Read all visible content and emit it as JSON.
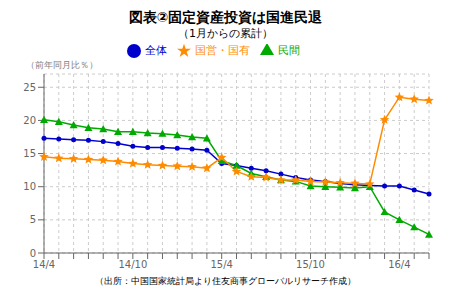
{
  "chart_data": {
    "type": "line",
    "title": "図表②固定資産投資は国進民退",
    "subtitle": "（1月からの累計）",
    "ylabel": "（前年同月比％）",
    "note": "（出所：中国国家統計局より住友商事グローバルリサーチ作成）",
    "categories": [
      "14/4",
      null,
      null,
      null,
      null,
      null,
      "14/10",
      null,
      null,
      null,
      null,
      null,
      "15/4",
      null,
      null,
      null,
      null,
      null,
      "15/10",
      null,
      null,
      null,
      null,
      null,
      "16/4",
      null,
      null
    ],
    "ylim": [
      0,
      27
    ],
    "yticks": [
      0,
      5,
      10,
      15,
      20,
      25
    ],
    "grid": true,
    "legend": "top",
    "series": [
      {
        "name": "全体",
        "color": "#0000CD",
        "marker": "circle",
        "values": [
          17.3,
          17.2,
          17.1,
          17.0,
          16.8,
          16.5,
          16.1,
          15.9,
          15.9,
          15.8,
          15.7,
          15.5,
          13.5,
          13.2,
          12.8,
          12.4,
          11.9,
          11.4,
          11.0,
          10.8,
          10.5,
          10.3,
          10.2,
          10.1,
          10.1,
          9.5,
          8.9
        ]
      },
      {
        "name": "民間",
        "color": "#00AA00",
        "marker": "triangle",
        "values": [
          20.1,
          19.8,
          19.3,
          18.9,
          18.7,
          18.3,
          18.3,
          18.1,
          18.0,
          17.8,
          17.5,
          17.3,
          13.9,
          13.2,
          12.0,
          11.5,
          11.0,
          10.8,
          10.1,
          10.0,
          9.9,
          9.8,
          10.0,
          6.2,
          5.0,
          3.9,
          2.8
        ]
      },
      {
        "name": "国営・国有",
        "color": "#FF8C00",
        "marker": "star",
        "values": [
          14.5,
          14.3,
          14.2,
          14.1,
          14.0,
          13.8,
          13.5,
          13.3,
          13.2,
          13.1,
          13.0,
          12.8,
          14.4,
          12.3,
          11.5,
          11.4,
          11.0,
          11.0,
          10.8,
          10.7,
          10.6,
          10.5,
          10.4,
          20.1,
          23.5,
          23.2,
          23.0
        ]
      }
    ]
  }
}
